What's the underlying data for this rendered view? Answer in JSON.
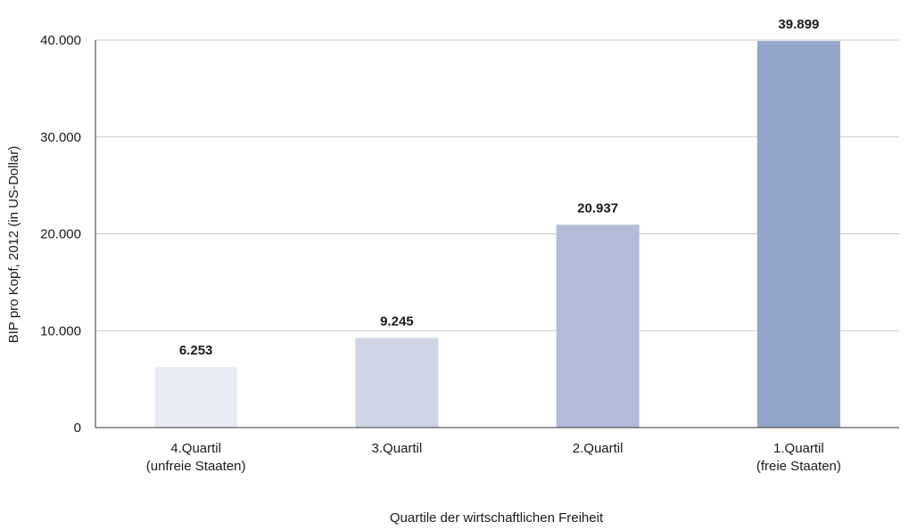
{
  "chart_data": {
    "type": "bar",
    "title": "",
    "xlabel": "Quartile der wirtschaftlichen Freiheit",
    "ylabel": "BIP pro Kopf, 2012 (in US-Dollar)",
    "ylim": [
      0,
      40000
    ],
    "yticks": [
      0,
      10000,
      20000,
      30000,
      40000
    ],
    "ytick_labels": [
      "0",
      "10.000",
      "20.000",
      "30.000",
      "40.000"
    ],
    "grid": true,
    "legend": "none",
    "categories": [
      [
        "4.Quartil",
        "(unfreie Staaten)"
      ],
      [
        "3.Quartil"
      ],
      [
        "2.Quartil"
      ],
      [
        "1.Quartil",
        "(freie Staaten)"
      ]
    ],
    "values": [
      6253,
      9245,
      20937,
      39899
    ],
    "value_labels": [
      "6.253",
      "9.245",
      "20.937",
      "39.899"
    ],
    "colors": [
      "#e9ecf4",
      "#cfd5e6",
      "#b0bcd8",
      "#93a4c9"
    ]
  }
}
